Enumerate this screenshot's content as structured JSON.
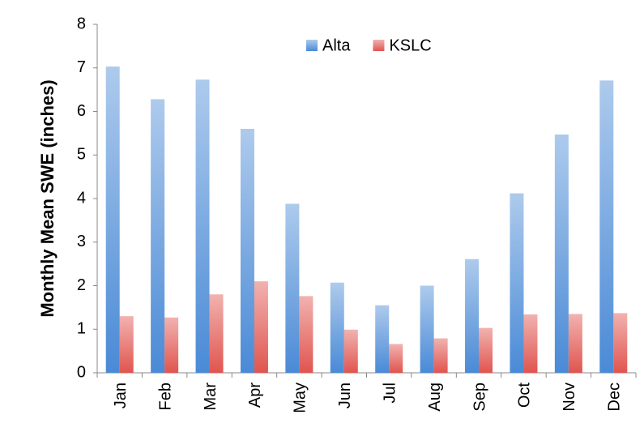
{
  "chart_data": {
    "type": "bar",
    "y_label": "Monthly Mean SWE (inches)",
    "categories": [
      "Jan",
      "Feb",
      "Mar",
      "Apr",
      "May",
      "Jun",
      "Jul",
      "Aug",
      "Sep",
      "Oct",
      "Nov",
      "Dec"
    ],
    "series": [
      {
        "name": "Alta",
        "color": "#4a8ad6",
        "values": [
          7.03,
          6.28,
          6.73,
          5.6,
          3.88,
          2.07,
          1.55,
          2.0,
          2.61,
          4.12,
          5.47,
          6.71
        ]
      },
      {
        "name": "KSLC",
        "color": "#e0554f",
        "values": [
          1.3,
          1.27,
          1.8,
          2.1,
          1.76,
          0.99,
          0.66,
          0.79,
          1.03,
          1.34,
          1.35,
          1.37
        ]
      }
    ],
    "ylim": [
      0,
      8
    ],
    "yticks": [
      0,
      1,
      2,
      3,
      4,
      5,
      6,
      7,
      8
    ],
    "grid": false,
    "legend": "top"
  }
}
